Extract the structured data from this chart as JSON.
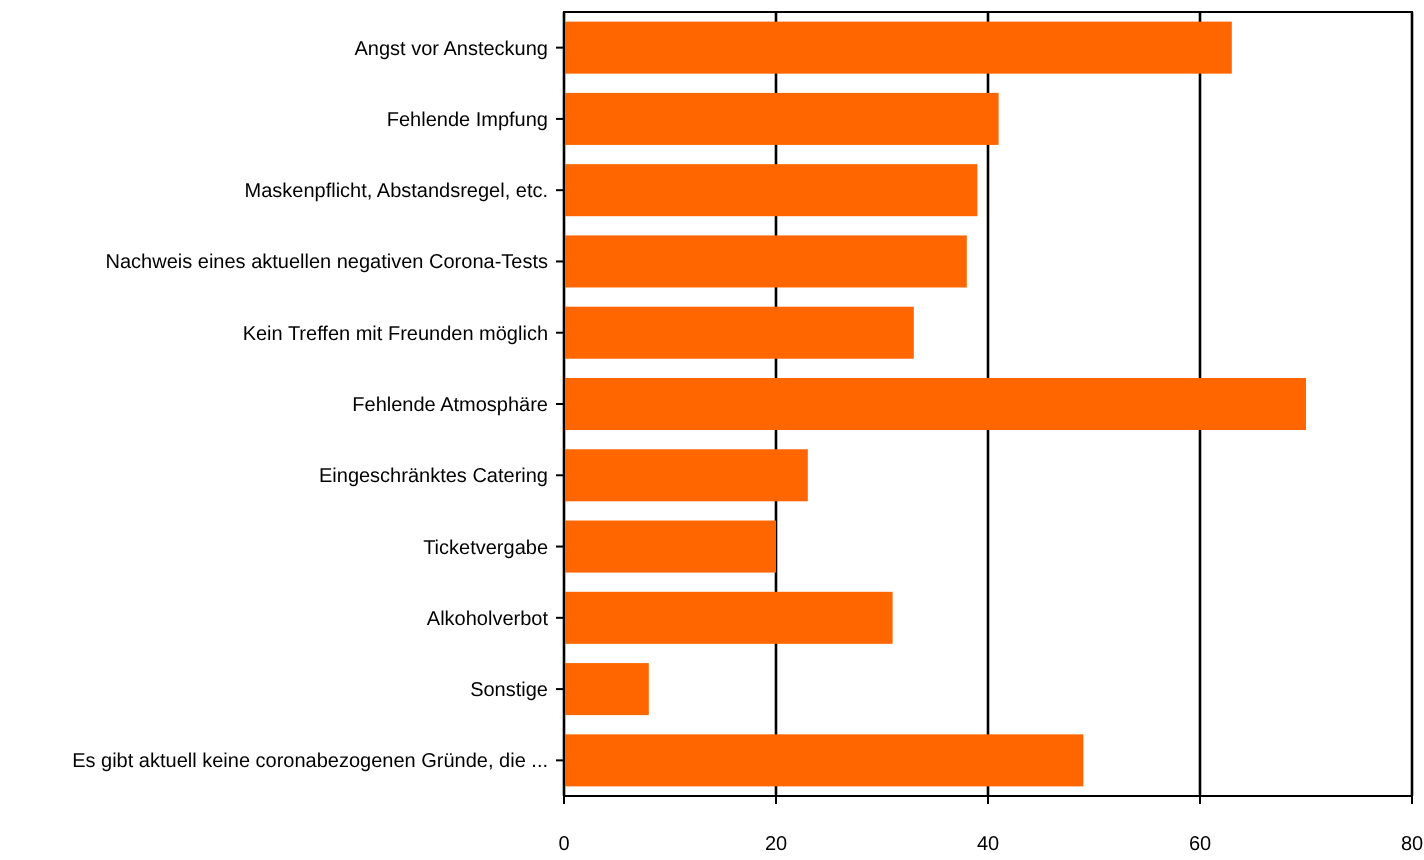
{
  "chart_data": {
    "type": "bar",
    "orientation": "horizontal",
    "categories": [
      "Angst vor Ansteckung",
      "Fehlende Impfung",
      "Maskenpflicht, Abstandsregel, etc.",
      "Nachweis eines aktuellen negativen Corona-Tests",
      "Kein Treffen mit Freunden möglich",
      "Fehlende Atmosphäre",
      "Eingeschränktes Catering",
      "Ticketvergabe",
      "Alkoholverbot",
      "Sonstige",
      "Es gibt aktuell keine coronabezogenen Gründe, die ..."
    ],
    "values": [
      63,
      41,
      39,
      38,
      33,
      70,
      23,
      20,
      31,
      8,
      49
    ],
    "color": "#ff6600",
    "xlim": [
      0,
      80
    ],
    "xticks": [
      0,
      20,
      40,
      60,
      80
    ],
    "grid": "x"
  }
}
